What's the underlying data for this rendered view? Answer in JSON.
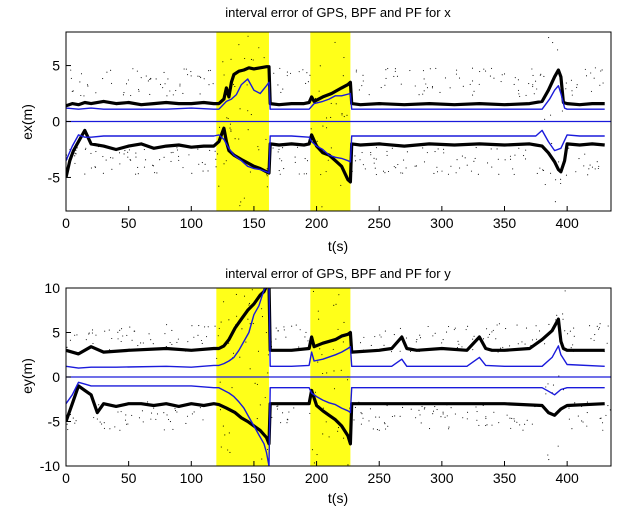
{
  "chart_data": [
    {
      "type": "line",
      "title": "interval error of GPS, BPF and PF for x",
      "xlabel": "t(s)",
      "ylabel": "ex(m)",
      "xlim": [
        0,
        435
      ],
      "ylim": [
        -8,
        8
      ],
      "xticks": [
        "0",
        "50",
        "100",
        "150",
        "200",
        "250",
        "300",
        "350",
        "400"
      ],
      "yticks": [
        "-5",
        "0",
        "5"
      ],
      "highlight_spans": [
        [
          120,
          162
        ],
        [
          195,
          227
        ]
      ],
      "series": [
        {
          "style": "thick-black",
          "x": [
            0,
            5,
            10,
            15,
            20,
            30,
            40,
            50,
            60,
            70,
            80,
            90,
            100,
            110,
            118,
            122,
            126,
            128,
            130,
            132,
            134,
            138,
            142,
            146,
            150,
            155,
            160,
            162,
            163,
            170,
            180,
            190,
            194,
            196,
            198,
            205,
            212,
            220,
            225,
            227,
            228,
            235,
            250,
            270,
            290,
            310,
            330,
            350,
            370,
            380,
            385,
            390,
            393,
            395,
            397,
            400,
            410,
            420,
            430
          ],
          "y": [
            1.4,
            1.6,
            1.5,
            1.7,
            1.6,
            1.8,
            1.6,
            1.7,
            1.5,
            1.6,
            1.7,
            1.6,
            1.6,
            1.7,
            1.6,
            1.6,
            2,
            3,
            2.2,
            3.5,
            4.2,
            4.5,
            4.6,
            4.8,
            4.7,
            4.8,
            4.9,
            4.9,
            1.6,
            1.5,
            1.6,
            1.6,
            1.7,
            2.2,
            1.8,
            2.2,
            2.5,
            3,
            3.3,
            3.5,
            1.6,
            1.5,
            1.6,
            1.5,
            1.6,
            1.5,
            1.6,
            1.5,
            1.6,
            1.8,
            2.8,
            4,
            4.6,
            4,
            1.7,
            1.6,
            1.5,
            1.6,
            1.6
          ]
        },
        {
          "style": "thick-black",
          "x": [
            0,
            3,
            6,
            10,
            15,
            20,
            30,
            40,
            50,
            60,
            70,
            80,
            90,
            100,
            110,
            118,
            122,
            126,
            128,
            130,
            134,
            140,
            145,
            150,
            155,
            160,
            162,
            163,
            170,
            180,
            190,
            194,
            196,
            200,
            205,
            210,
            215,
            220,
            225,
            227,
            228,
            235,
            250,
            270,
            290,
            310,
            330,
            350,
            370,
            375,
            380,
            385,
            390,
            393,
            395,
            398,
            400,
            410,
            420,
            430
          ],
          "y": [
            -5,
            -3.5,
            -2.6,
            -1.8,
            -0.8,
            -2,
            -2.2,
            -2.5,
            -2.2,
            -2,
            -2.4,
            -2.2,
            -2.1,
            -2.3,
            -2.2,
            -2.2,
            -1.8,
            -0.6,
            -1.8,
            -2.6,
            -3,
            -3.4,
            -3.7,
            -4,
            -4.2,
            -4.5,
            -4.6,
            -2,
            -2.1,
            -2,
            -2.1,
            -2,
            -1.2,
            -2.2,
            -2.8,
            -3,
            -3.5,
            -4,
            -5.2,
            -5.4,
            -2,
            -2.1,
            -2,
            -2.2,
            -2,
            -2.1,
            -2,
            -2.1,
            -2,
            -2.1,
            -2.2,
            -2.8,
            -3.6,
            -4.3,
            -4.5,
            -3.5,
            -2,
            -2.1,
            -2,
            -2.1
          ]
        },
        {
          "style": "thin-blue",
          "x": [
            0,
            10,
            20,
            30,
            50,
            80,
            100,
            118,
            122,
            128,
            132,
            136,
            140,
            145,
            150,
            155,
            160,
            162,
            163,
            180,
            194,
            198,
            205,
            210,
            215,
            220,
            227,
            228,
            260,
            300,
            350,
            380,
            386,
            390,
            393,
            395,
            398,
            400,
            430
          ],
          "y": [
            1.2,
            1.1,
            1.2,
            1.1,
            1.1,
            1.1,
            1.2,
            1.1,
            1.1,
            1.8,
            2,
            2.4,
            3.3,
            3.8,
            2.8,
            2.5,
            3.2,
            3.5,
            1.1,
            1.1,
            1.1,
            1.6,
            1.8,
            2,
            2.3,
            2.3,
            2.5,
            1.1,
            1.1,
            1.1,
            1.1,
            1.1,
            2,
            2.8,
            3.2,
            2.5,
            1.2,
            1.1,
            1.1
          ]
        },
        {
          "style": "thin-blue",
          "x": [
            0,
            5,
            10,
            15,
            20,
            30,
            60,
            100,
            118,
            122,
            126,
            128,
            130,
            134,
            140,
            145,
            150,
            155,
            160,
            162,
            163,
            180,
            194,
            196,
            200,
            205,
            210,
            215,
            220,
            225,
            227,
            228,
            260,
            300,
            350,
            375,
            380,
            385,
            390,
            395,
            400,
            410,
            430
          ],
          "y": [
            -3.5,
            -2.2,
            -1.2,
            -1.4,
            -1.4,
            -1.3,
            -1.3,
            -1.3,
            -1.3,
            -1.2,
            -1.6,
            -2,
            -2.4,
            -3,
            -3.5,
            -4,
            -4.2,
            -4.3,
            -4.5,
            -4.6,
            -1.3,
            -1.3,
            -1.4,
            -1.8,
            -2.2,
            -2.5,
            -3,
            -3.2,
            -3.3,
            -3.5,
            -3.6,
            -1.3,
            -1.3,
            -1.3,
            -1.3,
            -1.3,
            -0.8,
            -1.8,
            -2.6,
            -2.4,
            -1.2,
            -1.3,
            -1.3
          ]
        }
      ]
    },
    {
      "type": "line",
      "title": "interval error of GPS, BPF and PF for y",
      "xlabel": "t(s)",
      "ylabel": "ey(m)",
      "xlim": [
        0,
        435
      ],
      "ylim": [
        -10,
        10
      ],
      "xticks": [
        "0",
        "50",
        "100",
        "150",
        "200",
        "250",
        "300",
        "350",
        "400"
      ],
      "yticks": [
        "-10",
        "-5",
        "0",
        "5",
        "10"
      ],
      "highlight_spans": [
        [
          120,
          162
        ],
        [
          195,
          227
        ]
      ],
      "series": [
        {
          "style": "thick-black",
          "x": [
            0,
            10,
            20,
            30,
            50,
            80,
            100,
            118,
            122,
            126,
            130,
            135,
            140,
            145,
            150,
            155,
            158,
            160,
            162,
            163,
            180,
            194,
            196,
            198,
            205,
            215,
            220,
            225,
            227,
            228,
            250,
            260,
            268,
            272,
            280,
            300,
            320,
            330,
            335,
            340,
            350,
            370,
            380,
            388,
            393,
            395,
            397,
            400,
            410,
            430
          ],
          "y": [
            3,
            2.6,
            3.4,
            2.8,
            3,
            3.2,
            3,
            3.2,
            3.2,
            3.5,
            4.2,
            5.5,
            6.5,
            7.5,
            8.2,
            9.2,
            9.6,
            10.2,
            10.5,
            3,
            3,
            3.2,
            4.5,
            3.4,
            3.8,
            4.2,
            4.6,
            4.8,
            5,
            2.8,
            3,
            3.2,
            4.5,
            3.2,
            3,
            3.2,
            3,
            4.5,
            3.2,
            3,
            3,
            3.2,
            4.2,
            5.2,
            6.5,
            4,
            3.2,
            3,
            3,
            3
          ]
        },
        {
          "style": "thick-black",
          "x": [
            0,
            5,
            10,
            15,
            20,
            25,
            30,
            40,
            50,
            60,
            70,
            80,
            90,
            100,
            110,
            118,
            122,
            128,
            135,
            140,
            145,
            150,
            155,
            160,
            162,
            163,
            180,
            194,
            196,
            200,
            205,
            210,
            215,
            220,
            225,
            227,
            228,
            250,
            300,
            350,
            380,
            385,
            390,
            395,
            400,
            430
          ],
          "y": [
            -5,
            -3,
            -1,
            -1.5,
            -2,
            -4,
            -3,
            -3.3,
            -3,
            -3,
            -3.2,
            -3,
            -3.3,
            -3,
            -3.2,
            -3,
            -3.1,
            -3.5,
            -4,
            -4.6,
            -5,
            -5.5,
            -6,
            -6.8,
            -7.5,
            -3,
            -3,
            -3,
            -1.5,
            -3.2,
            -3.8,
            -4.3,
            -4.8,
            -5.5,
            -6.6,
            -7.5,
            -3,
            -3,
            -3,
            -3,
            -3.2,
            -4,
            -4.3,
            -3.6,
            -3.2,
            -3
          ]
        },
        {
          "style": "thin-blue",
          "x": [
            0,
            10,
            20,
            40,
            80,
            100,
            118,
            122,
            126,
            130,
            134,
            138,
            142,
            146,
            150,
            154,
            158,
            162,
            163,
            180,
            194,
            196,
            198,
            205,
            215,
            220,
            225,
            227,
            228,
            260,
            268,
            272,
            300,
            320,
            330,
            335,
            350,
            380,
            388,
            393,
            395,
            400,
            430
          ],
          "y": [
            1.2,
            1,
            1.1,
            1.1,
            1.2,
            1.1,
            1.3,
            1.3,
            1.5,
            1.8,
            2.2,
            3,
            4,
            5,
            7,
            8,
            9.8,
            10.5,
            1.2,
            1.2,
            1.3,
            2.8,
            1.8,
            2,
            2.5,
            2.8,
            3.2,
            3.4,
            1.2,
            1.2,
            2,
            1.2,
            1.2,
            1.2,
            2.2,
            1.3,
            1.2,
            1.2,
            2.2,
            3.5,
            2.5,
            1.4,
            1.2
          ]
        },
        {
          "style": "thin-blue",
          "x": [
            0,
            5,
            10,
            15,
            20,
            30,
            60,
            100,
            118,
            122,
            126,
            130,
            134,
            138,
            142,
            146,
            150,
            154,
            158,
            160,
            162,
            163,
            180,
            194,
            196,
            200,
            205,
            210,
            215,
            220,
            225,
            227,
            228,
            260,
            300,
            350,
            380,
            385,
            390,
            395,
            400,
            430
          ],
          "y": [
            -3,
            -2,
            -0.6,
            -0.8,
            -1,
            -1,
            -1,
            -1,
            -1.2,
            -1.2,
            -1.5,
            -1.8,
            -2.2,
            -2.8,
            -3.5,
            -4.5,
            -5.5,
            -6.5,
            -7.5,
            -8.5,
            -10,
            -1.2,
            -1.2,
            -1.2,
            -1.8,
            -2.2,
            -2.6,
            -2.9,
            -3.1,
            -3.5,
            -3.8,
            -4,
            -1.2,
            -1.2,
            -1.2,
            -1.2,
            -1.2,
            -1.6,
            -2,
            -1.4,
            -1.2,
            -1.2
          ]
        }
      ]
    }
  ]
}
